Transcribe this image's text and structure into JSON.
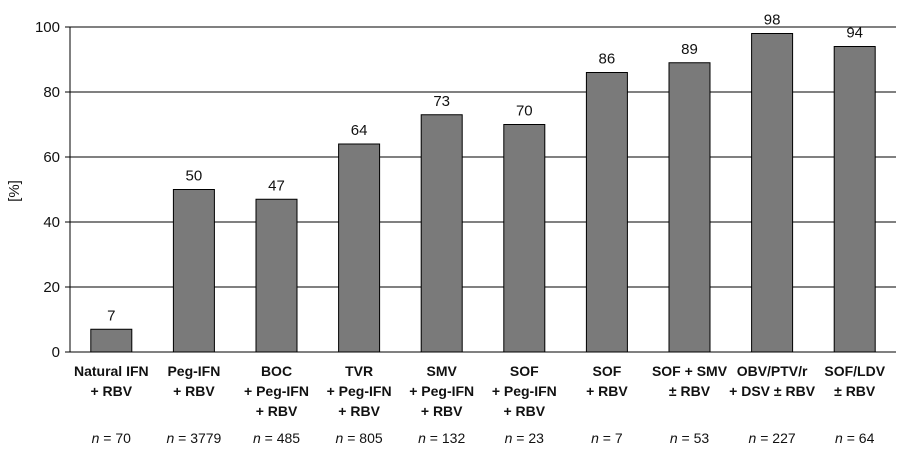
{
  "chart_data": {
    "type": "bar",
    "title": "",
    "xlabel": "",
    "ylabel": "[%]",
    "ylim": [
      0,
      100
    ],
    "yticks": [
      0,
      20,
      40,
      60,
      80,
      100
    ],
    "grid": true,
    "bar_color": "#7a7a7a",
    "categories": [
      [
        "Natural IFN",
        "+ RBV"
      ],
      [
        "Peg-IFN",
        "+ RBV"
      ],
      [
        "BOC",
        "+ Peg-IFN",
        "+ RBV"
      ],
      [
        "TVR",
        "+ Peg-IFN",
        "+ RBV"
      ],
      [
        "SMV",
        "+ Peg-IFN",
        "+ RBV"
      ],
      [
        "SOF",
        "+ Peg-IFN",
        "+ RBV"
      ],
      [
        "SOF",
        "+ RBV"
      ],
      [
        "SOF + SMV",
        "± RBV"
      ],
      [
        "OBV/PTV/r",
        "+ DSV ± RBV"
      ],
      [
        "SOF/LDV",
        "± RBV"
      ]
    ],
    "values": [
      7,
      50,
      47,
      64,
      73,
      70,
      86,
      89,
      98,
      94
    ],
    "sample_sizes": [
      "n = 70",
      "n = 3779",
      "n = 485",
      "n = 805",
      "n = 132",
      "n = 23",
      "n = 7",
      "n = 53",
      "n = 227",
      "n = 64"
    ]
  }
}
